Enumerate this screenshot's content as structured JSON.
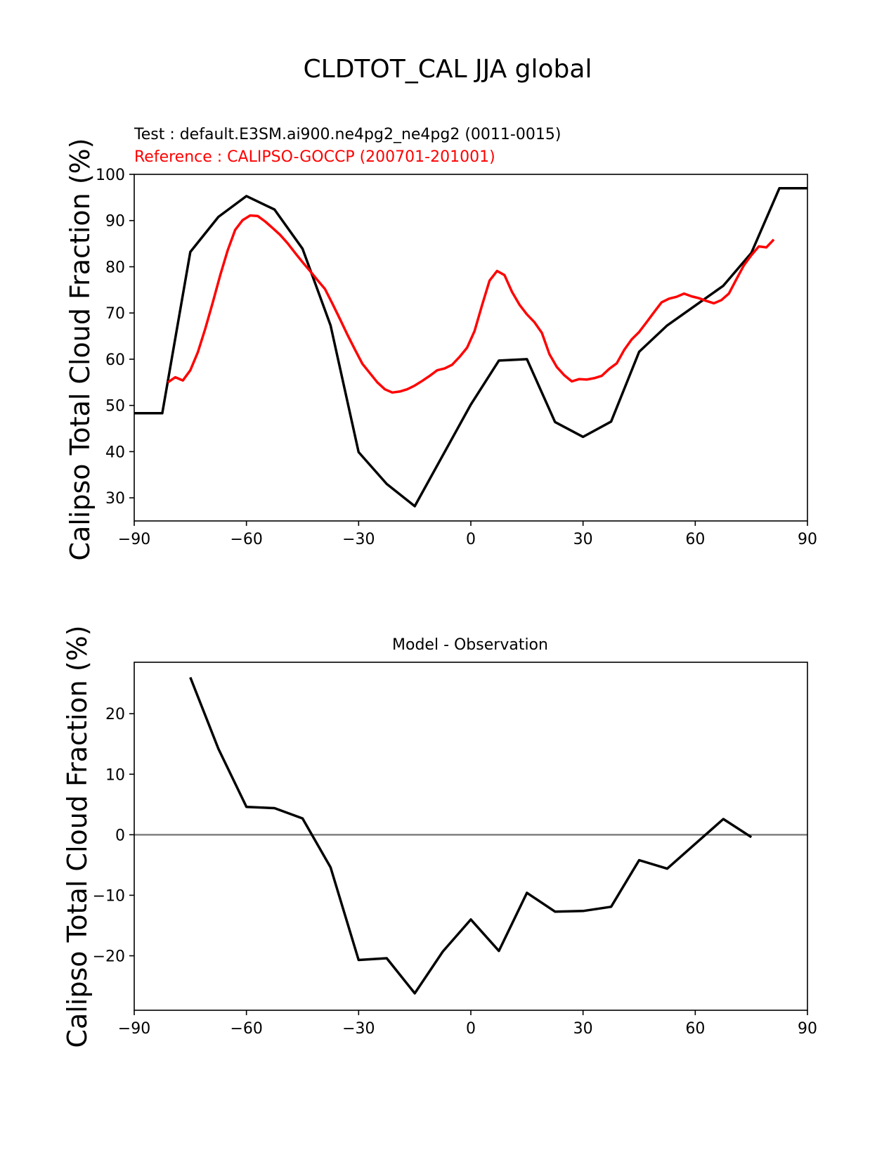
{
  "figure": {
    "suptitle": "CLDTOT_CAL JJA global"
  },
  "chart_data": [
    {
      "type": "line",
      "title": "",
      "test_label": "Test : default.E3SM.ai900.ne4pg2_ne4pg2 (0011-0015)",
      "reference_label": "Reference : CALIPSO-GOCCP (200701-201001)",
      "xlabel": "",
      "ylabel": "Calipso Total Cloud Fraction (%)",
      "xlim": [
        -90,
        90
      ],
      "ylim": [
        25,
        100
      ],
      "xticks": [
        -90,
        -60,
        -30,
        0,
        30,
        60,
        90
      ],
      "xtick_labels": [
        "−90",
        "−60",
        "−30",
        "0",
        "30",
        "60",
        "90"
      ],
      "yticks": [
        30,
        40,
        50,
        60,
        70,
        80,
        90,
        100
      ],
      "ytick_labels": [
        "30",
        "40",
        "50",
        "60",
        "70",
        "80",
        "90",
        "100"
      ],
      "grid": false,
      "series": [
        {
          "role": "test",
          "color": "#000000",
          "x": [
            -90,
            -82.5,
            -75,
            -67.5,
            -60,
            -52.5,
            -45,
            -37.5,
            -30,
            -22.5,
            -15,
            -7.5,
            0,
            7.5,
            15,
            22.5,
            30,
            37.5,
            45,
            52.5,
            60,
            67.5,
            75,
            82.5,
            90
          ],
          "y": [
            48.3,
            48.3,
            83.2,
            90.8,
            95.3,
            92.4,
            83.9,
            67.3,
            39.9,
            33.0,
            28.2,
            39.2,
            50.2,
            59.7,
            60.0,
            46.4,
            43.2,
            46.5,
            61.6,
            67.3,
            71.6,
            75.9,
            83.0,
            97.0,
            97.0
          ]
        },
        {
          "role": "reference",
          "color": "#ff0000",
          "x": [
            -81,
            -79,
            -77,
            -75,
            -73,
            -71,
            -69,
            -67,
            -65,
            -63,
            -61,
            -59,
            -57,
            -55,
            -53,
            -51,
            -49,
            -47,
            -45,
            -43,
            -41,
            -39,
            -37,
            -35,
            -33,
            -31,
            -29,
            -27,
            -25,
            -23,
            -21,
            -19,
            -17,
            -15,
            -13,
            -11,
            -9,
            -7,
            -5,
            -3,
            -1,
            1,
            3,
            5,
            7,
            9,
            11,
            13,
            15,
            17,
            19,
            21,
            23,
            25,
            27,
            29,
            31,
            33,
            35,
            37,
            39,
            41,
            43,
            45,
            47,
            49,
            51,
            53,
            55,
            57,
            59,
            61,
            63,
            65,
            67,
            69,
            71,
            73,
            75,
            77,
            79,
            81
          ],
          "y": [
            55.0,
            56.1,
            55.4,
            57.6,
            61.5,
            66.6,
            72.3,
            78.2,
            83.6,
            88.0,
            90.1,
            91.1,
            91.0,
            89.8,
            88.4,
            86.9,
            85.1,
            83.0,
            81.0,
            79.1,
            77.1,
            75.2,
            72.0,
            68.7,
            65.3,
            62.1,
            59.0,
            57.0,
            55.0,
            53.5,
            52.8,
            53.0,
            53.5,
            54.3,
            55.3,
            56.4,
            57.6,
            58.0,
            58.8,
            60.5,
            62.5,
            66.1,
            71.7,
            77.0,
            79.1,
            78.2,
            74.6,
            71.8,
            69.7,
            68.0,
            65.7,
            61.1,
            58.3,
            56.5,
            55.2,
            55.7,
            55.6,
            55.9,
            56.4,
            57.9,
            59.1,
            62.0,
            64.3,
            65.9,
            68.0,
            70.2,
            72.3,
            73.1,
            73.5,
            74.2,
            73.6,
            73.2,
            72.6,
            72.1,
            72.8,
            74.2,
            77.3,
            80.3,
            82.5,
            84.4,
            84.2,
            85.9
          ]
        }
      ]
    },
    {
      "type": "line",
      "title": "Model - Observation",
      "xlabel": "",
      "ylabel": "Calipso Total Cloud Fraction (%)",
      "xlim": [
        -90,
        90
      ],
      "ylim": [
        -29,
        28.5
      ],
      "xticks": [
        -90,
        -60,
        -30,
        0,
        30,
        60,
        90
      ],
      "xtick_labels": [
        "−90",
        "−60",
        "−30",
        "0",
        "30",
        "60",
        "90"
      ],
      "yticks": [
        -20,
        -10,
        0,
        10,
        20
      ],
      "ytick_labels": [
        "−20",
        "−10",
        "0",
        "10",
        "20"
      ],
      "grid": false,
      "zero_line_color": "#808080",
      "series": [
        {
          "role": "difference",
          "color": "#000000",
          "x": [
            -75,
            -67.5,
            -60,
            -52.5,
            -45,
            -37.5,
            -30,
            -22.5,
            -15,
            -7.5,
            0,
            7.5,
            15,
            22.5,
            30,
            37.5,
            45,
            52.5,
            60,
            67.5,
            75
          ],
          "y": [
            26.0,
            14.2,
            4.6,
            4.4,
            2.7,
            -5.4,
            -20.7,
            -20.4,
            -26.2,
            -19.3,
            -14.0,
            -19.2,
            -9.6,
            -12.7,
            -12.6,
            -11.9,
            -4.2,
            -5.6,
            -1.5,
            2.6,
            -0.4
          ]
        }
      ]
    }
  ]
}
